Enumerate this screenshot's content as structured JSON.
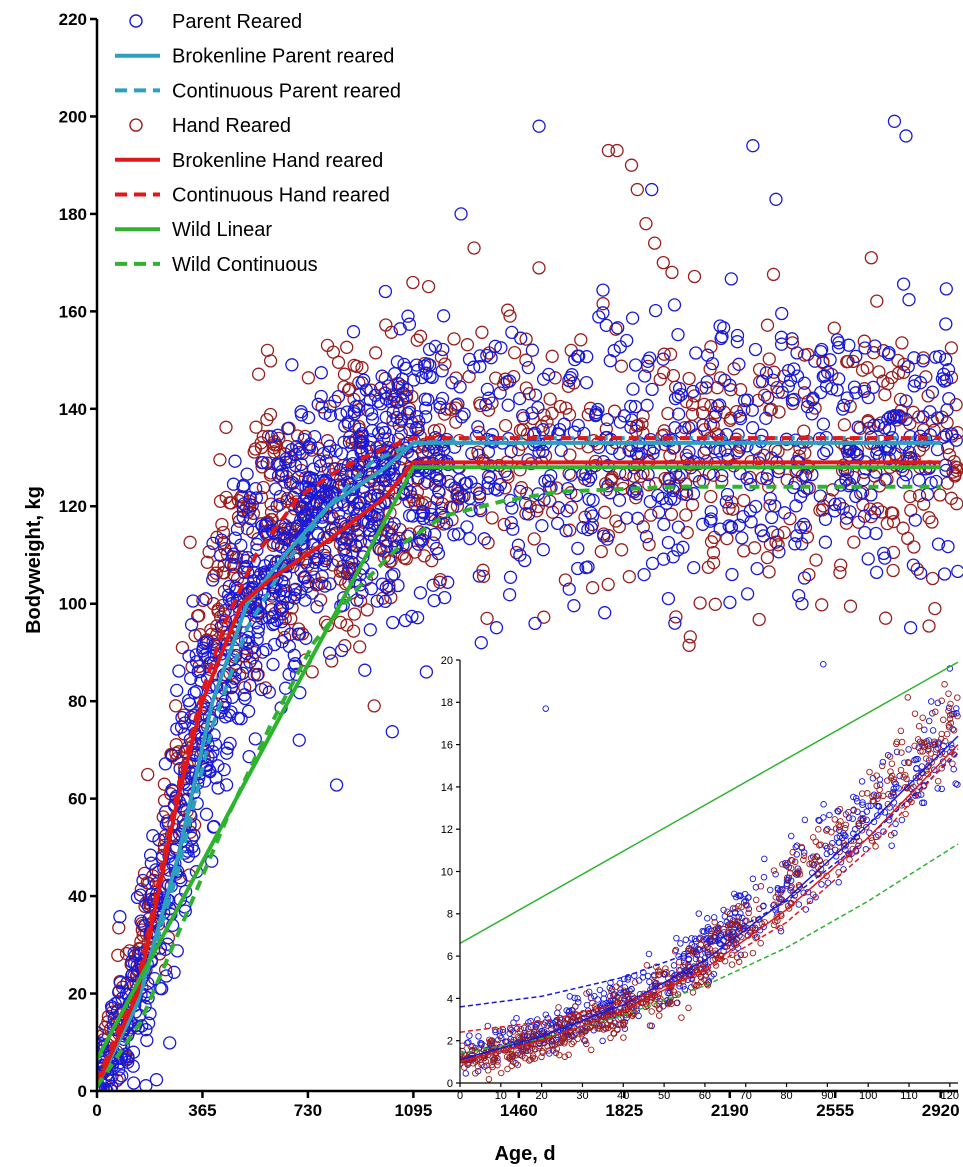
{
  "chart_data": [
    {
      "type": "scatter",
      "title": "",
      "xlabel": "Age, d",
      "ylabel": "Bodyweight, kg",
      "xlim": [
        0,
        2980
      ],
      "ylim": [
        0,
        220
      ],
      "xticks": [
        0,
        365,
        730,
        1095,
        1460,
        1825,
        2190,
        2555,
        2920
      ],
      "yticks": [
        0,
        20,
        40,
        60,
        80,
        100,
        120,
        140,
        160,
        180,
        200,
        220
      ],
      "legend_position": "top-left",
      "grid": false,
      "legend": [
        {
          "label": "Parent Reared",
          "kind": "marker",
          "color": "#1a1ad6",
          "dash": false
        },
        {
          "label": "Brokenline Parent reared",
          "kind": "line",
          "color": "#2f9fbf",
          "dash": false
        },
        {
          "label": "Continuous Parent reared",
          "kind": "line",
          "color": "#2f9fbf",
          "dash": true
        },
        {
          "label": "Hand Reared",
          "kind": "marker",
          "color": "#9a1e1e",
          "dash": false
        },
        {
          "label": "Brokenline Hand reared",
          "kind": "line",
          "color": "#e01818",
          "dash": false
        },
        {
          "label": "Continuous Hand reared",
          "kind": "line",
          "color": "#e01818",
          "dash": true
        },
        {
          "label": "Wild Linear",
          "kind": "line",
          "color": "#2fb32f",
          "dash": false
        },
        {
          "label": "Wild Continuous",
          "kind": "line",
          "color": "#2fb32f",
          "dash": true
        }
      ],
      "scatter_series": [
        {
          "name": "Parent Reared",
          "color": "#1a1ad6",
          "trend": [
            [
              0,
              1
            ],
            [
              90,
              12
            ],
            [
              180,
              30
            ],
            [
              270,
              50
            ],
            [
              365,
              72
            ],
            [
              450,
              92
            ],
            [
              550,
              105
            ],
            [
              650,
              112
            ],
            [
              730,
              118
            ],
            [
              900,
              124
            ],
            [
              1095,
              130
            ],
            [
              2980,
              132
            ]
          ],
          "spread": 14,
          "count": 1500
        },
        {
          "name": "Hand Reared",
          "color": "#9a1e1e",
          "trend": [
            [
              0,
              1
            ],
            [
              90,
              14
            ],
            [
              180,
              35
            ],
            [
              270,
              60
            ],
            [
              365,
              85
            ],
            [
              450,
              102
            ],
            [
              550,
              110
            ],
            [
              650,
              115
            ],
            [
              730,
              118
            ],
            [
              900,
              122
            ],
            [
              1095,
              130
            ],
            [
              2980,
              130
            ]
          ],
          "spread": 14,
          "count": 1050
        }
      ],
      "scatter_outliers": [
        {
          "series": "Parent Reared",
          "x": 1530,
          "y": 198
        },
        {
          "series": "Parent Reared",
          "x": 2270,
          "y": 194
        },
        {
          "series": "Parent Reared",
          "x": 2760,
          "y": 199
        },
        {
          "series": "Parent Reared",
          "x": 2800,
          "y": 196
        },
        {
          "series": "Parent Reared",
          "x": 1920,
          "y": 185
        },
        {
          "series": "Parent Reared",
          "x": 2350,
          "y": 183
        },
        {
          "series": "Parent Reared",
          "x": 1260,
          "y": 180
        },
        {
          "series": "Parent Reared",
          "x": 700,
          "y": 72
        },
        {
          "series": "Parent Reared",
          "x": 1140,
          "y": 86
        },
        {
          "series": "Parent Reared",
          "x": 1330,
          "y": 92
        },
        {
          "series": "Parent Reared",
          "x": 2440,
          "y": 100
        },
        {
          "series": "Parent Reared",
          "x": 2000,
          "y": 96
        },
        {
          "series": "Hand Reared",
          "x": 1770,
          "y": 193
        },
        {
          "series": "Hand Reared",
          "x": 1800,
          "y": 193
        },
        {
          "series": "Hand Reared",
          "x": 1850,
          "y": 190
        },
        {
          "series": "Hand Reared",
          "x": 1870,
          "y": 185
        },
        {
          "series": "Hand Reared",
          "x": 1900,
          "y": 178
        },
        {
          "series": "Hand Reared",
          "x": 1930,
          "y": 174
        },
        {
          "series": "Hand Reared",
          "x": 1960,
          "y": 170
        },
        {
          "series": "Hand Reared",
          "x": 1990,
          "y": 168
        },
        {
          "series": "Hand Reared",
          "x": 2680,
          "y": 171
        },
        {
          "series": "Hand Reared",
          "x": 1305,
          "y": 173
        },
        {
          "series": "Hand Reared",
          "x": 590,
          "y": 152
        },
        {
          "series": "Hand Reared",
          "x": 2900,
          "y": 99
        },
        {
          "series": "Hand Reared",
          "x": 1350,
          "y": 97
        }
      ],
      "lines": [
        {
          "name": "Brokenline Parent reared",
          "color": "#2f9fbf",
          "dash": false,
          "points": [
            [
              0,
              1
            ],
            [
              140,
              18
            ],
            [
              280,
              48
            ],
            [
              400,
              80
            ],
            [
              520,
              100
            ],
            [
              650,
              110
            ],
            [
              800,
              120
            ],
            [
              1000,
              128
            ],
            [
              1095,
              133
            ],
            [
              2920,
              133
            ]
          ]
        },
        {
          "name": "Continuous Parent reared",
          "color": "#2f9fbf",
          "dash": true,
          "points": [
            [
              0,
              2
            ],
            [
              140,
              18
            ],
            [
              280,
              45
            ],
            [
              400,
              75
            ],
            [
              520,
              95
            ],
            [
              650,
              108
            ],
            [
              800,
              120
            ],
            [
              950,
              129
            ],
            [
              1095,
              133
            ],
            [
              1300,
              134
            ],
            [
              2920,
              134
            ]
          ]
        },
        {
          "name": "Brokenline Hand reared",
          "color": "#e01818",
          "dash": false,
          "points": [
            [
              0,
              1
            ],
            [
              140,
              20
            ],
            [
              280,
              60
            ],
            [
              365,
              80
            ],
            [
              500,
              100
            ],
            [
              600,
              105
            ],
            [
              800,
              113
            ],
            [
              1000,
              122
            ],
            [
              1095,
              129
            ],
            [
              2920,
              129
            ]
          ]
        },
        {
          "name": "Continuous Hand reared",
          "color": "#e01818",
          "dash": true,
          "points": [
            [
              0,
              2
            ],
            [
              140,
              22
            ],
            [
              280,
              62
            ],
            [
              365,
              82
            ],
            [
              450,
              97
            ],
            [
              550,
              110
            ],
            [
              700,
              122
            ],
            [
              850,
              128
            ],
            [
              1000,
              132
            ],
            [
              1095,
              134
            ],
            [
              1400,
              134
            ],
            [
              2920,
              134
            ]
          ]
        },
        {
          "name": "Wild Linear",
          "color": "#2fb32f",
          "dash": false,
          "points": [
            [
              0,
              6.5
            ],
            [
              1095,
              128
            ],
            [
              2920,
              128
            ]
          ]
        },
        {
          "name": "Wild Continuous",
          "color": "#2fb32f",
          "dash": true,
          "points": [
            [
              0,
              1
            ],
            [
              150,
              14
            ],
            [
              300,
              35
            ],
            [
              450,
              56
            ],
            [
              600,
              75
            ],
            [
              750,
              92
            ],
            [
              900,
              103
            ],
            [
              1050,
              112
            ],
            [
              1200,
              118
            ],
            [
              1400,
              121
            ],
            [
              1600,
              123
            ],
            [
              2000,
              124
            ],
            [
              2920,
              124
            ]
          ]
        }
      ]
    },
    {
      "type": "scatter",
      "title": "",
      "xlabel": "",
      "ylabel": "",
      "xlim": [
        0,
        122
      ],
      "ylim": [
        0,
        20
      ],
      "xticks": [
        0,
        10,
        20,
        30,
        40,
        50,
        60,
        70,
        80,
        90,
        100,
        110,
        120
      ],
      "yticks": [
        0,
        2,
        4,
        6,
        8,
        10,
        12,
        14,
        16,
        18,
        20
      ],
      "grid": false,
      "scatter_series": [
        {
          "name": "Parent Reared",
          "color": "#1a1ad6",
          "trend": [
            [
              0,
              1.2
            ],
            [
              10,
              1.7
            ],
            [
              20,
              2.3
            ],
            [
              30,
              3.0
            ],
            [
              40,
              3.9
            ],
            [
              50,
              5.0
            ],
            [
              60,
              6.4
            ],
            [
              70,
              7.8
            ],
            [
              80,
              9.3
            ],
            [
              90,
              10.9
            ],
            [
              100,
              12.6
            ],
            [
              110,
              14.4
            ],
            [
              120,
              16.3
            ]
          ],
          "spread": 0.9,
          "count": 700
        },
        {
          "name": "Hand Reared",
          "color": "#9a1e1e",
          "trend": [
            [
              0,
              1.0
            ],
            [
              10,
              1.4
            ],
            [
              20,
              1.9
            ],
            [
              30,
              2.6
            ],
            [
              40,
              3.4
            ],
            [
              50,
              4.4
            ],
            [
              60,
              5.8
            ],
            [
              70,
              7.3
            ],
            [
              80,
              9.0
            ],
            [
              90,
              10.9
            ],
            [
              100,
              12.9
            ],
            [
              110,
              14.9
            ],
            [
              120,
              17.0
            ]
          ],
          "spread": 0.8,
          "count": 650
        }
      ],
      "scatter_outliers": [
        {
          "series": "Parent Reared",
          "x": 21,
          "y": 17.7
        },
        {
          "series": "Parent Reared",
          "x": 89,
          "y": 19.8
        },
        {
          "series": "Parent Reared",
          "x": 120,
          "y": 19.6
        }
      ],
      "lines": [
        {
          "name": "Wild Linear",
          "color": "#2fb32f",
          "dash": false,
          "points": [
            [
              0,
              6.6
            ],
            [
              122,
              19.9
            ]
          ]
        },
        {
          "name": "Wild Continuous",
          "color": "#2fb32f",
          "dash": true,
          "points": [
            [
              0,
              1.4
            ],
            [
              20,
              2.1
            ],
            [
              40,
              3.2
            ],
            [
              60,
              4.6
            ],
            [
              80,
              6.4
            ],
            [
              100,
              8.6
            ],
            [
              122,
              11.3
            ]
          ]
        },
        {
          "name": "Continuous Parent reared",
          "color": "#1a1ad6",
          "dash": true,
          "points": [
            [
              0,
              3.6
            ],
            [
              20,
              4.1
            ],
            [
              40,
              5.0
            ],
            [
              60,
              6.4
            ],
            [
              80,
              8.6
            ],
            [
              100,
              11.6
            ],
            [
              122,
              15.6
            ]
          ]
        },
        {
          "name": "Brokenline Parent reared",
          "color": "#1a1ad6",
          "dash": false,
          "points": [
            [
              0,
              1.1
            ],
            [
              20,
              2.2
            ],
            [
              40,
              3.7
            ],
            [
              60,
              5.8
            ],
            [
              80,
              8.7
            ],
            [
              100,
              12.2
            ],
            [
              122,
              16.4
            ]
          ]
        },
        {
          "name": "Continuous Hand reared",
          "color": "#e01818",
          "dash": true,
          "points": [
            [
              0,
              2.4
            ],
            [
              20,
              2.9
            ],
            [
              40,
              3.8
            ],
            [
              60,
              5.3
            ],
            [
              80,
              7.6
            ],
            [
              100,
              11.0
            ],
            [
              122,
              15.8
            ]
          ]
        },
        {
          "name": "Brokenline Hand reared",
          "color": "#e01818",
          "dash": false,
          "points": [
            [
              0,
              1.0
            ],
            [
              20,
              2.0
            ],
            [
              40,
              3.4
            ],
            [
              60,
              5.4
            ],
            [
              80,
              8.2
            ],
            [
              100,
              11.6
            ],
            [
              122,
              16.0
            ]
          ]
        }
      ]
    }
  ]
}
